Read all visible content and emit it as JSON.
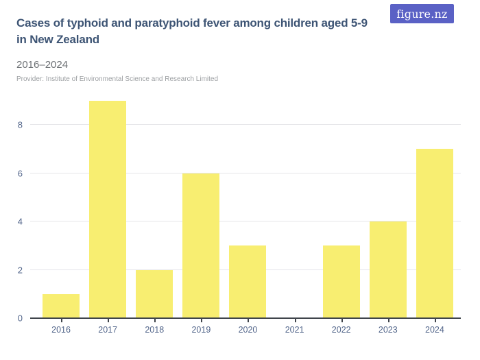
{
  "logo": {
    "text": "figure.nz",
    "bg_color": "#5a61c5",
    "text_color": "#ffffff"
  },
  "header": {
    "title_lines": [
      "Cases of typhoid and paratyphoid fever among children aged 5-9",
      "in New Zealand"
    ],
    "subtitle": "2016–2024",
    "provider": "Provider: Institute of Environmental Science and Research Limited",
    "title_color": "#3d5474",
    "subtitle_color": "#6d7175",
    "provider_color": "#9da0a3"
  },
  "chart_data": {
    "type": "bar",
    "title": "Cases of typhoid and paratyphoid fever among children aged 5-9 in New Zealand",
    "subtitle": "2016–2024",
    "categories": [
      "2016",
      "2017",
      "2018",
      "2019",
      "2020",
      "2021",
      "2022",
      "2023",
      "2024"
    ],
    "values": [
      1,
      9,
      2,
      6,
      3,
      0,
      3,
      4,
      7
    ],
    "series_name": "Cases",
    "xlabel": "",
    "ylabel": "",
    "ylim": [
      0,
      9
    ],
    "yticks": [
      0,
      2,
      4,
      6,
      8
    ],
    "gridlines": [
      2,
      4,
      6,
      8
    ],
    "grid": "horizontal",
    "legend": "none",
    "bar_color": "#f8ee71",
    "axis_color": "#3f444b",
    "label_color": "#52658a",
    "gridline_color": "#e5e5e9"
  }
}
